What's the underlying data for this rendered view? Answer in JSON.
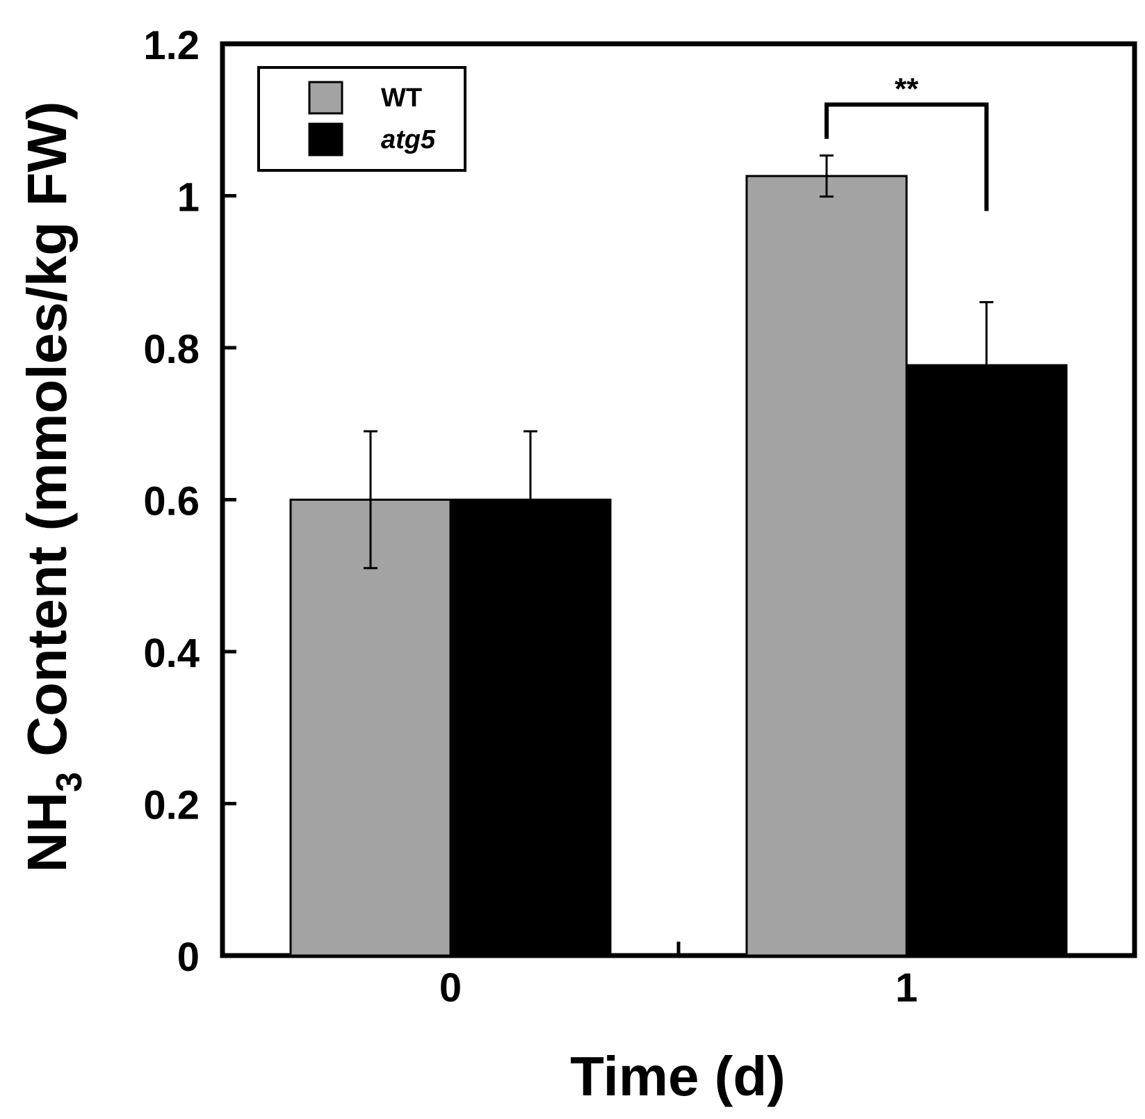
{
  "chart_data": {
    "type": "bar",
    "title": "",
    "xlabel": "Time (d)",
    "ylabel": {
      "prefix": "NH",
      "subscript": "3",
      "suffix": " Content (mmoles/kg FW)"
    },
    "categories": [
      "0",
      "1"
    ],
    "ylim": [
      0,
      1.2
    ],
    "yticks": [
      0,
      0.2,
      0.4,
      0.6,
      0.8,
      1,
      1.2
    ],
    "ytick_labels": [
      "0",
      "0.2",
      "0.4",
      "0.6",
      "0.8",
      "1",
      "1.2"
    ],
    "series": [
      {
        "name": "WT",
        "color": "#a3a3a3",
        "italic": false,
        "values": [
          0.6,
          1.026
        ],
        "errors": [
          0.09,
          0.027
        ]
      },
      {
        "name": "atg5",
        "color": "#000000",
        "italic": true,
        "values": [
          0.6,
          0.777
        ],
        "errors": [
          0.09,
          0.083
        ]
      }
    ],
    "annotations": [
      {
        "text": "**",
        "category": "1"
      }
    ],
    "legend": {
      "position": "top-left",
      "box": true
    },
    "grid": false
  }
}
